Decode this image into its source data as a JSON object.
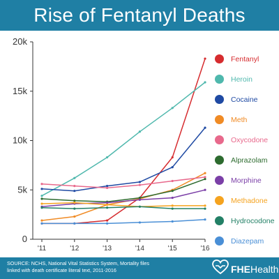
{
  "header": {
    "title": "Rise of Fentanyl Deaths"
  },
  "footer": {
    "source_line1": "SOURCE: NCHS, National Vital Statistics System, Mortality files",
    "source_line2": "linked with death certificate literal text, 2011-2016",
    "logo_bold": "FHE",
    "logo_rest": "Health",
    "logo_icon": "heart-hands-icon"
  },
  "colors": {
    "header_bg": "#1f7fa4",
    "footer_bg": "#1f7fa4"
  },
  "chart_data": {
    "type": "line",
    "title": "Rise of Fentanyl Deaths",
    "x": [
      "'11",
      "'12",
      "'13",
      "'14",
      "'15",
      "'16"
    ],
    "ylim": [
      0,
      20000
    ],
    "yticks": [
      0,
      5000,
      10000,
      15000,
      20000
    ],
    "ytick_labels": [
      "0",
      "5k",
      "10k",
      "15k",
      "20k"
    ],
    "grid": false,
    "legend_position": "right",
    "series": [
      {
        "name": "Fentanyl",
        "color": "#d62c2f",
        "values": [
          1600,
          1600,
          1900,
          4200,
          8300,
          18300
        ]
      },
      {
        "name": "Heroin",
        "color": "#4fb8ad",
        "values": [
          4400,
          6200,
          8300,
          10900,
          13300,
          15900
        ]
      },
      {
        "name": "Cocaine",
        "color": "#1f4aa3",
        "values": [
          5100,
          4900,
          5400,
          5800,
          7300,
          11300
        ]
      },
      {
        "name": "Meth",
        "color": "#f08b25",
        "values": [
          1900,
          2300,
          3500,
          4100,
          5000,
          6700
        ]
      },
      {
        "name": "Oxycodone",
        "color": "#e8698c",
        "values": [
          5600,
          5400,
          5200,
          5500,
          5900,
          6300
        ]
      },
      {
        "name": "Alprazolam",
        "color": "#2d6b2f",
        "values": [
          4100,
          3900,
          3800,
          4200,
          4900,
          6100
        ]
      },
      {
        "name": "Morphine",
        "color": "#7b3fa7",
        "values": [
          3300,
          3600,
          3700,
          4000,
          4200,
          5000
        ]
      },
      {
        "name": "Methadone",
        "color": "#f5a31f",
        "values": [
          3600,
          3700,
          3500,
          3300,
          3400,
          3400
        ]
      },
      {
        "name": "Hydrocodone",
        "color": "#238066",
        "values": [
          3200,
          3100,
          3200,
          3300,
          3100,
          3100
        ]
      },
      {
        "name": "Diazepam",
        "color": "#4a8fd6",
        "values": [
          1600,
          1600,
          1600,
          1700,
          1800,
          2000
        ]
      }
    ]
  }
}
